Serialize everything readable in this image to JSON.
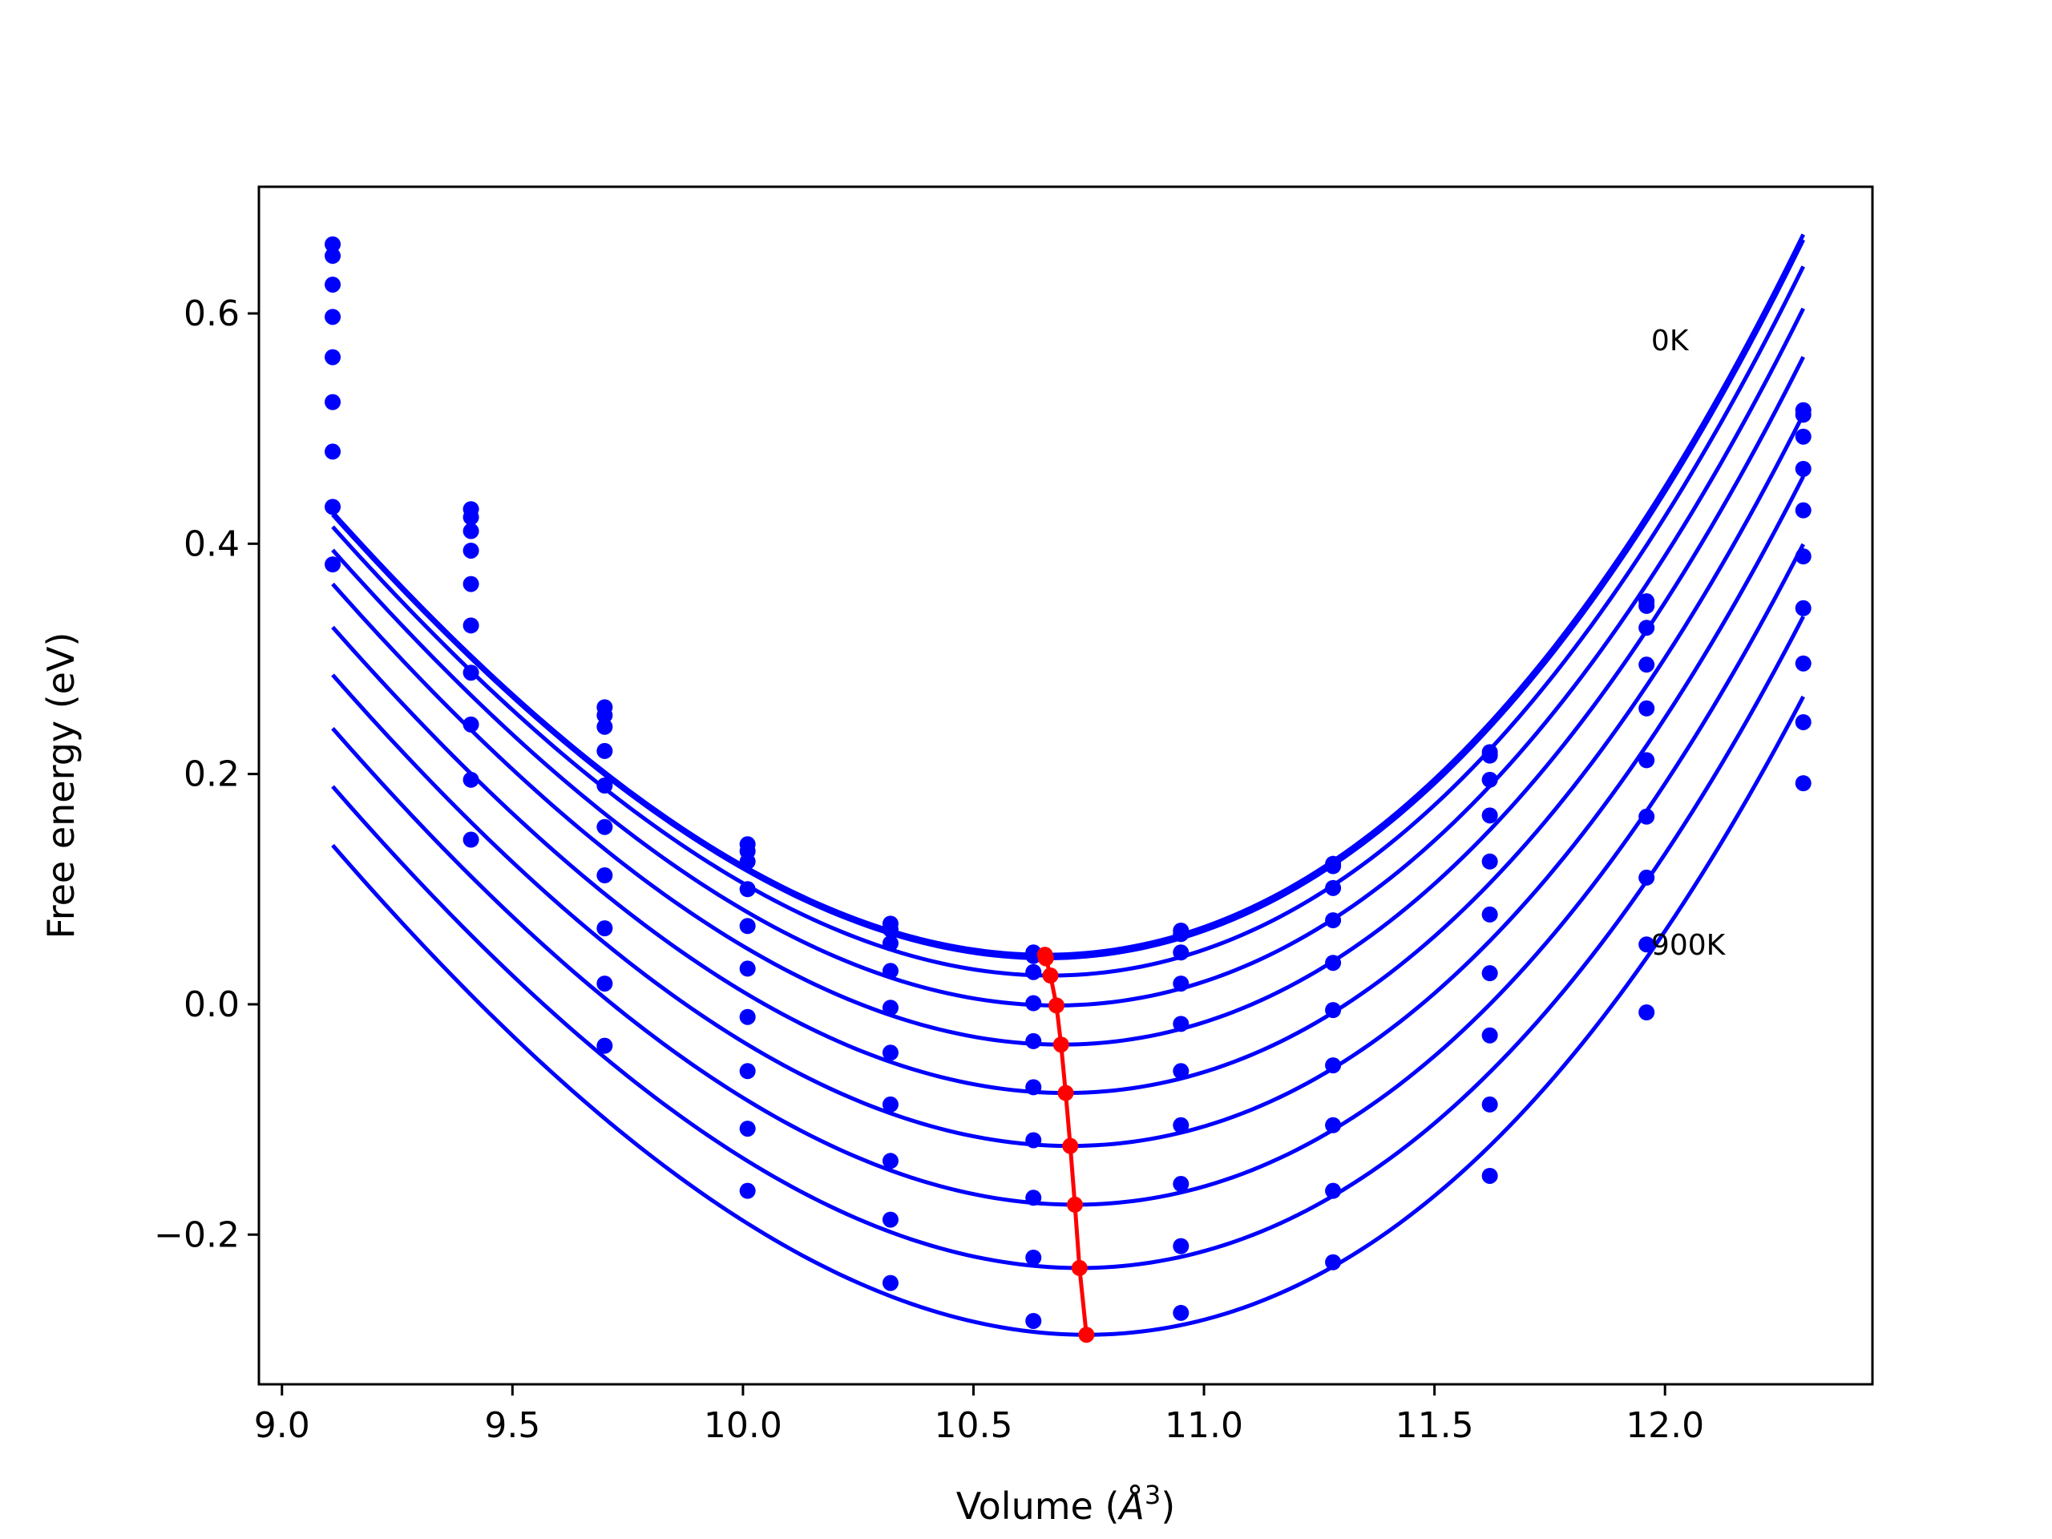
{
  "chart_data": {
    "type": "line",
    "title": "",
    "xlabel": "Volume",
    "xlabel_unit": "Å",
    "xlabel_unit_sup": "3",
    "ylabel": "Free energy (eV)",
    "xlim": [
      8.95,
      12.45
    ],
    "ylim": [
      -0.33,
      0.71
    ],
    "x_ticks": [
      9.0,
      9.5,
      10.0,
      10.5,
      11.0,
      11.5,
      12.0
    ],
    "x_tick_labels": [
      "9.0",
      "9.5",
      "10.0",
      "10.5",
      "11.0",
      "11.5",
      "12.0"
    ],
    "y_ticks": [
      -0.2,
      0.0,
      0.2,
      0.4,
      0.6
    ],
    "y_tick_labels": [
      "−0.2",
      "0.0",
      "0.2",
      "0.4",
      "0.6"
    ],
    "grid": false,
    "colors": {
      "curves": "#0000ff",
      "minimum_line": "#ff0000",
      "axes": "#000000"
    },
    "volumes": [
      9.11,
      9.41,
      9.7,
      10.01,
      10.32,
      10.63,
      10.95,
      11.28,
      11.62,
      11.96,
      12.3
    ],
    "curves": [
      {
        "points": [
          0.66,
          0.43,
          0.258,
          0.139,
          0.07,
          0.045,
          0.064,
          0.122,
          0.219,
          0.35,
          0.516
        ],
        "fit": {
          "v0": 10.655,
          "e0": 0.043,
          "a": 0.195,
          "b": 0.022
        }
      },
      {
        "points": [
          0.65,
          0.423,
          0.251,
          0.133,
          0.065,
          0.042,
          0.061,
          0.12,
          0.216,
          0.346,
          0.512
        ],
        "fit": {
          "v0": 10.657,
          "e0": 0.04,
          "a": 0.195,
          "b": 0.022
        }
      },
      {
        "points": [
          0.625,
          0.411,
          0.241,
          0.124,
          0.053,
          0.028,
          0.045,
          0.101,
          0.195,
          0.327,
          0.493
        ],
        "fit": {
          "v0": 10.667,
          "e0": 0.025,
          "a": 0.195,
          "b": 0.022
        }
      },
      {
        "points": [
          0.597,
          0.394,
          0.22,
          0.1,
          0.029,
          0.001,
          0.018,
          0.073,
          0.164,
          0.295,
          0.465
        ],
        "fit": {
          "v0": 10.68,
          "e0": -0.001,
          "a": 0.195,
          "b": 0.022
        }
      },
      {
        "points": [
          0.562,
          0.365,
          0.19,
          0.068,
          -0.003,
          -0.032,
          -0.017,
          0.036,
          0.124,
          0.257,
          0.429
        ],
        "fit": {
          "v0": 10.69,
          "e0": -0.035,
          "a": 0.195,
          "b": 0.022
        }
      },
      {
        "points": [
          0.523,
          0.329,
          0.154,
          0.031,
          -0.042,
          -0.072,
          -0.058,
          -0.005,
          0.078,
          0.212,
          0.389
        ],
        "fit": {
          "v0": 10.7,
          "e0": -0.077,
          "a": 0.195,
          "b": 0.022
        }
      },
      {
        "points": [
          0.48,
          0.288,
          0.112,
          -0.011,
          -0.087,
          -0.118,
          -0.105,
          -0.053,
          0.027,
          0.163,
          0.344
        ],
        "fit": {
          "v0": 10.71,
          "e0": -0.123,
          "a": 0.195,
          "b": 0.022
        }
      },
      {
        "points": [
          0.432,
          0.243,
          0.066,
          -0.058,
          -0.136,
          -0.168,
          -0.156,
          -0.105,
          -0.027,
          0.11,
          0.296
        ],
        "fit": {
          "v0": 10.72,
          "e0": -0.174,
          "a": 0.195,
          "b": 0.022
        }
      },
      {
        "points": [
          0.382,
          0.195,
          0.018,
          -0.108,
          -0.187,
          -0.22,
          -0.21,
          -0.162,
          -0.087,
          0.052,
          0.245
        ],
        "fit": {
          "v0": 10.73,
          "e0": -0.229,
          "a": 0.195,
          "b": 0.022
        }
      },
      {
        "points": [
          null,
          0.143,
          -0.036,
          -0.162,
          -0.242,
          -0.275,
          -0.268,
          -0.224,
          -0.149,
          -0.007,
          0.192
        ],
        "fit": {
          "v0": 10.745,
          "e0": -0.287,
          "a": 0.195,
          "b": 0.022
        }
      }
    ],
    "minimum_line": {
      "x": [
        10.655,
        10.657,
        10.667,
        10.68,
        10.69,
        10.7,
        10.71,
        10.72,
        10.73,
        10.745
      ],
      "y": [
        0.043,
        0.04,
        0.025,
        -0.001,
        -0.035,
        -0.077,
        -0.123,
        -0.174,
        -0.229,
        -0.287
      ]
    },
    "annotations": [
      {
        "text": "0K",
        "x": 11.97,
        "y": 0.568
      },
      {
        "text": "900K",
        "x": 11.97,
        "y": 0.043
      }
    ]
  }
}
